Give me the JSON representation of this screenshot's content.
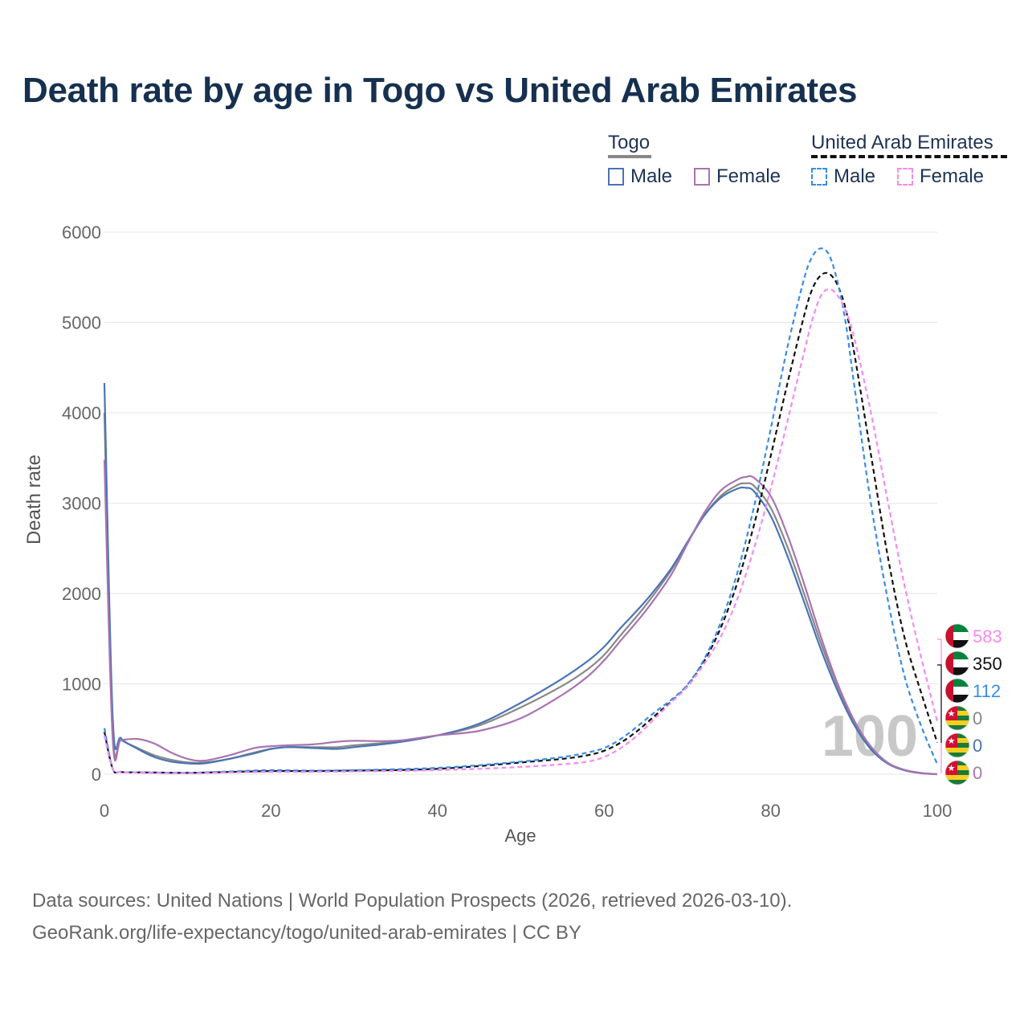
{
  "title": "Death rate by age in Togo vs United Arab Emirates",
  "legend": {
    "groups": [
      {
        "name": "Togo",
        "items": [
          {
            "label": "Male",
            "color": "#4a74b4",
            "style": "solid"
          },
          {
            "label": "Female",
            "color": "#a874b0",
            "style": "solid"
          }
        ]
      },
      {
        "name": "United Arab Emirates",
        "items": [
          {
            "label": "Male",
            "color": "#3a8ce6",
            "style": "dashed"
          },
          {
            "label": "Female",
            "color": "#f48cf0",
            "style": "dashed"
          }
        ]
      }
    ]
  },
  "footer": {
    "line1": "Data sources: United Nations | World Population Prospects (2026, retrieved 2026-03-10).",
    "line2": "GeoRank.org/life-expectancy/togo/united-arab-emirates | CC BY"
  },
  "chart_data": {
    "type": "line",
    "title": "Death rate by age in Togo vs United Arab Emirates",
    "xlabel": "Age",
    "ylabel": "Death rate",
    "xlim": [
      0,
      100
    ],
    "ylim": [
      0,
      6000
    ],
    "xticks": [
      0,
      20,
      40,
      60,
      80,
      100
    ],
    "yticks": [
      0,
      1000,
      2000,
      3000,
      4000,
      5000,
      6000
    ],
    "grid": true,
    "watermark": "100",
    "series": [
      {
        "name": "Togo Total",
        "color": "#888888",
        "dash": "solid",
        "x": [
          0,
          1,
          2,
          4,
          6,
          8,
          10,
          12,
          15,
          18,
          20,
          22,
          25,
          28,
          30,
          35,
          40,
          45,
          50,
          55,
          58,
          60,
          62,
          65,
          68,
          70,
          72,
          74,
          76,
          77,
          78,
          80,
          82,
          84,
          86,
          88,
          90,
          92,
          94,
          96,
          98,
          100
        ],
        "y": [
          4000,
          480,
          380,
          290,
          210,
          160,
          130,
          130,
          170,
          240,
          280,
          300,
          300,
          300,
          320,
          360,
          430,
          540,
          740,
          980,
          1160,
          1320,
          1540,
          1870,
          2250,
          2560,
          2860,
          3080,
          3200,
          3220,
          3190,
          2950,
          2520,
          2000,
          1460,
          980,
          580,
          300,
          130,
          50,
          15,
          0
        ]
      },
      {
        "name": "Togo Male",
        "color": "#4a74b4",
        "dash": "solid",
        "x": [
          0,
          1,
          2,
          4,
          6,
          8,
          10,
          12,
          15,
          18,
          20,
          22,
          25,
          28,
          30,
          35,
          40,
          45,
          50,
          55,
          58,
          60,
          62,
          65,
          68,
          70,
          72,
          74,
          76,
          77,
          78,
          80,
          82,
          84,
          86,
          88,
          90,
          92,
          94,
          96,
          98,
          100
        ],
        "y": [
          4330,
          620,
          400,
          280,
          190,
          140,
          120,
          120,
          170,
          230,
          280,
          300,
          290,
          280,
          300,
          350,
          430,
          560,
          790,
          1060,
          1250,
          1410,
          1620,
          1920,
          2270,
          2570,
          2860,
          3060,
          3160,
          3170,
          3130,
          2860,
          2420,
          1910,
          1390,
          930,
          550,
          280,
          120,
          45,
          12,
          0
        ]
      },
      {
        "name": "Togo Female",
        "color": "#a874b0",
        "dash": "solid",
        "x": [
          0,
          1,
          2,
          4,
          6,
          8,
          10,
          12,
          15,
          18,
          20,
          22,
          25,
          28,
          30,
          35,
          40,
          45,
          50,
          55,
          58,
          60,
          62,
          65,
          68,
          70,
          72,
          74,
          76,
          77,
          78,
          80,
          82,
          84,
          86,
          88,
          90,
          92,
          94,
          96,
          98,
          100
        ],
        "y": [
          3480,
          380,
          380,
          390,
          340,
          240,
          170,
          150,
          210,
          290,
          310,
          320,
          330,
          360,
          370,
          370,
          430,
          480,
          620,
          880,
          1080,
          1260,
          1480,
          1810,
          2200,
          2550,
          2890,
          3140,
          3260,
          3290,
          3280,
          3080,
          2650,
          2110,
          1530,
          1010,
          600,
          310,
          130,
          50,
          15,
          0
        ]
      },
      {
        "name": "United Arab Emirates Total",
        "color": "#111111",
        "dash": "dashed",
        "x": [
          0,
          1,
          2,
          5,
          10,
          15,
          20,
          25,
          30,
          35,
          40,
          45,
          50,
          55,
          58,
          60,
          62,
          64,
          66,
          68,
          70,
          72,
          74,
          76,
          78,
          80,
          82,
          84,
          85,
          86,
          87,
          88,
          89,
          90,
          92,
          94,
          96,
          98,
          100
        ],
        "y": [
          470,
          60,
          25,
          20,
          15,
          25,
          35,
          35,
          40,
          45,
          60,
          90,
          130,
          170,
          210,
          260,
          350,
          480,
          640,
          800,
          980,
          1250,
          1620,
          2120,
          2760,
          3520,
          4320,
          5070,
          5370,
          5520,
          5540,
          5420,
          5150,
          4680,
          3560,
          2440,
          1540,
          920,
          350
        ]
      },
      {
        "name": "United Arab Emirates Male",
        "color": "#3a8ce6",
        "dash": "dashed",
        "x": [
          0,
          1,
          2,
          5,
          10,
          15,
          20,
          25,
          30,
          35,
          40,
          45,
          50,
          55,
          58,
          60,
          62,
          64,
          66,
          68,
          70,
          72,
          74,
          76,
          78,
          80,
          82,
          84,
          85,
          86,
          87,
          88,
          89,
          90,
          92,
          94,
          96,
          98,
          100
        ],
        "y": [
          510,
          60,
          25,
          20,
          15,
          30,
          45,
          40,
          45,
          55,
          70,
          100,
          140,
          190,
          240,
          290,
          390,
          530,
          680,
          820,
          990,
          1270,
          1680,
          2230,
          2960,
          3820,
          4720,
          5480,
          5730,
          5820,
          5750,
          5460,
          5000,
          4330,
          3020,
          1960,
          1110,
          550,
          112
        ]
      },
      {
        "name": "United Arab Emirates Female",
        "color": "#f48cf0",
        "dash": "dashed",
        "x": [
          0,
          1,
          2,
          5,
          10,
          15,
          20,
          25,
          30,
          35,
          40,
          45,
          50,
          55,
          58,
          60,
          62,
          64,
          66,
          68,
          70,
          72,
          74,
          76,
          78,
          80,
          82,
          84,
          85,
          86,
          87,
          88,
          89,
          90,
          92,
          94,
          96,
          98,
          100
        ],
        "y": [
          430,
          55,
          25,
          15,
          10,
          20,
          25,
          25,
          30,
          35,
          45,
          60,
          80,
          110,
          140,
          190,
          290,
          430,
          610,
          790,
          970,
          1220,
          1520,
          1940,
          2500,
          3160,
          3900,
          4670,
          5030,
          5290,
          5370,
          5300,
          5130,
          4840,
          4020,
          3050,
          2120,
          1320,
          583
        ]
      }
    ],
    "end_labels": [
      {
        "value": "583",
        "country": "United Arab Emirates",
        "color": "#f48cf0"
      },
      {
        "value": "350",
        "country": "United Arab Emirates",
        "color": "#111111"
      },
      {
        "value": "112",
        "country": "United Arab Emirates",
        "color": "#3a8ce6"
      },
      {
        "value": "0",
        "country": "Togo",
        "color": "#888888"
      },
      {
        "value": "0",
        "country": "Togo",
        "color": "#4a74b4"
      },
      {
        "value": "0",
        "country": "Togo",
        "color": "#a874b0"
      }
    ]
  }
}
